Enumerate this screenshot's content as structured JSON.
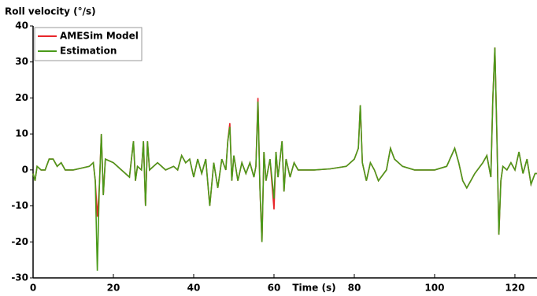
{
  "chart_data": {
    "type": "line",
    "title": "Roll velocity (°/s)",
    "x_label": "Time (s)",
    "x": [
      0,
      0.5,
      1,
      2,
      3,
      4,
      5,
      6,
      7,
      8,
      10,
      12,
      14,
      15,
      15.5,
      16,
      16.5,
      17,
      17.5,
      18,
      20,
      22,
      24,
      25,
      25.5,
      26,
      27,
      27.5,
      28,
      28.5,
      29,
      31,
      33,
      35,
      36,
      37,
      38,
      39,
      40,
      41,
      42,
      43,
      44,
      45,
      46,
      47,
      48,
      48.5,
      49,
      49.5,
      50,
      51,
      52,
      53,
      54,
      55,
      55.5,
      56,
      56.5,
      57,
      57.5,
      58,
      59,
      60,
      60.5,
      61,
      62,
      62.5,
      63,
      64,
      65,
      66,
      70,
      74,
      78,
      80,
      81,
      81.5,
      82,
      83,
      84,
      85,
      86,
      88,
      89,
      90,
      92,
      95,
      100,
      103,
      105,
      106,
      107,
      108,
      109,
      110,
      112,
      113,
      114,
      114.5,
      115,
      115.5,
      116,
      116.5,
      117,
      118,
      119,
      120,
      121,
      122,
      123,
      124,
      125,
      125.5
    ],
    "series": [
      {
        "name": "AMESim Model",
        "color": "#e8262a",
        "values": [
          -1,
          -3,
          1,
          0,
          0,
          3,
          3,
          1,
          2,
          0,
          0,
          0.5,
          1,
          2,
          -3,
          -13,
          -5,
          10,
          -7,
          3,
          2,
          0,
          -2,
          8,
          -3,
          1,
          0,
          8,
          -10,
          8,
          0,
          2,
          0,
          1,
          0,
          4,
          2,
          3,
          -2,
          3,
          -1,
          3,
          -10,
          2,
          -5,
          3,
          0,
          8,
          13,
          -3,
          4,
          -3,
          2,
          -1,
          2,
          -2,
          1,
          20,
          -5,
          -20,
          5,
          -3,
          3,
          -11,
          5,
          -2,
          8,
          -6,
          3,
          -2,
          2,
          0,
          0,
          0.3,
          1,
          3,
          6,
          18,
          2,
          -3,
          2,
          0,
          -3,
          0,
          6,
          3,
          1,
          0,
          0,
          1,
          6,
          2,
          -3,
          -5,
          -3,
          -1,
          2,
          4,
          -2,
          20,
          34,
          10,
          -18,
          -3,
          1,
          0,
          2,
          0,
          5,
          -1,
          3,
          -4,
          -1,
          -1
        ]
      },
      {
        "name": "Estimation",
        "color": "#4a9a1a",
        "values": [
          -1,
          -3,
          1,
          0,
          0,
          3,
          3,
          1,
          2,
          0,
          0,
          0.5,
          1,
          2,
          -3,
          -28,
          -5,
          10,
          -7,
          3,
          2,
          0,
          -2,
          8,
          -3,
          1,
          0,
          8,
          -10,
          8,
          0,
          2,
          0,
          1,
          0,
          4,
          2,
          3,
          -2,
          3,
          -1,
          3,
          -10,
          2,
          -5,
          3,
          0,
          8,
          12,
          -3,
          4,
          -3,
          2,
          -1,
          2,
          -2,
          1,
          19,
          -5,
          -20,
          5,
          -3,
          3,
          -8,
          5,
          -2,
          8,
          -6,
          3,
          -2,
          2,
          0,
          0,
          0.3,
          1,
          3,
          6,
          18,
          2,
          -3,
          2,
          0,
          -3,
          0,
          6,
          3,
          1,
          0,
          0,
          1,
          6,
          2,
          -3,
          -5,
          -3,
          -1,
          2,
          4,
          -2,
          20,
          34,
          10,
          -18,
          -3,
          1,
          0,
          2,
          0,
          5,
          -1,
          3,
          -4,
          -1,
          -1
        ]
      }
    ],
    "xlim": [
      0,
      125.5
    ],
    "xticks": [
      0,
      20,
      40,
      60,
      80,
      100,
      120
    ],
    "ylim": [
      -30,
      40
    ],
    "yticks": [
      -30,
      -20,
      -10,
      0,
      10,
      20,
      30,
      40
    ],
    "grid": false,
    "legend": "upper left"
  }
}
